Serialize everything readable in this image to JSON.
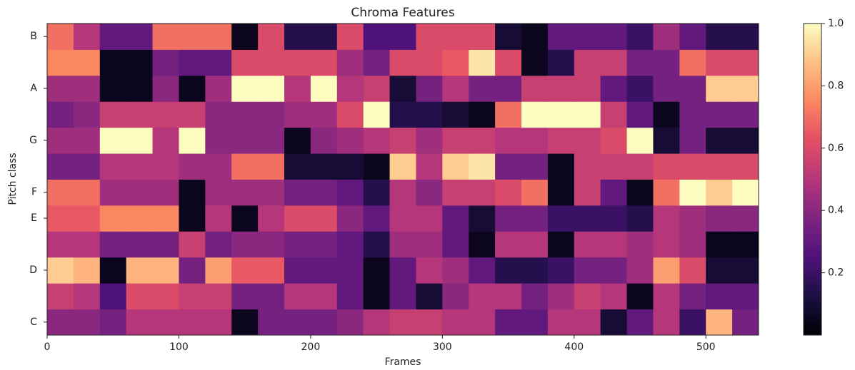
{
  "chart_data": {
    "type": "heatmap",
    "title": "Chroma Features",
    "x_label": "Frames",
    "y_label": "Pitch class",
    "colormap": "magma",
    "categories": [
      "C",
      null,
      "D",
      null,
      "E",
      "F",
      null,
      "G",
      null,
      "A",
      null,
      "B"
    ],
    "bins": [
      0,
      20,
      40,
      60,
      80,
      100,
      120,
      140,
      160,
      180,
      200,
      220,
      240,
      260,
      280,
      300,
      320,
      340,
      360,
      380,
      400,
      420,
      440,
      460,
      480,
      500,
      520,
      540
    ],
    "xlim": [
      0,
      540
    ],
    "xticks": [
      0,
      100,
      200,
      300,
      400,
      500
    ],
    "clim": [
      0,
      1
    ],
    "cticks": [
      0.2,
      0.4,
      0.6,
      0.8,
      {
        "value": 1,
        "label": "1.0"
      }
    ],
    "values": [
      [
        0.4,
        0.4,
        0.35,
        0.5,
        0.5,
        0.5,
        0.5,
        0.05,
        0.35,
        0.35,
        0.35,
        0.4,
        0.5,
        0.55,
        0.55,
        0.5,
        0.5,
        0.3,
        0.3,
        0.5,
        0.5,
        0.1,
        0.3,
        0.5,
        0.2,
        0.85,
        0.35
      ],
      [
        0.55,
        0.5,
        0.25,
        0.6,
        0.6,
        0.55,
        0.55,
        0.35,
        0.35,
        0.5,
        0.5,
        0.3,
        0.05,
        0.3,
        0.1,
        0.4,
        0.5,
        0.5,
        0.35,
        0.45,
        0.55,
        0.5,
        0.05,
        0.5,
        0.35,
        0.3,
        0.3
      ],
      [
        0.9,
        0.85,
        0.05,
        0.85,
        0.85,
        0.35,
        0.8,
        0.65,
        0.65,
        0.3,
        0.3,
        0.3,
        0.05,
        0.3,
        0.5,
        0.45,
        0.3,
        0.15,
        0.15,
        0.2,
        0.35,
        0.35,
        0.45,
        0.8,
        0.6,
        0.1,
        0.1
      ],
      [
        0.5,
        0.5,
        0.35,
        0.35,
        0.35,
        0.55,
        0.35,
        0.4,
        0.4,
        0.35,
        0.35,
        0.3,
        0.15,
        0.45,
        0.45,
        0.3,
        0.05,
        0.5,
        0.5,
        0.05,
        0.5,
        0.5,
        0.45,
        0.5,
        0.45,
        0.05,
        0.05
      ],
      [
        0.65,
        0.65,
        0.75,
        0.75,
        0.75,
        0.05,
        0.5,
        0.05,
        0.5,
        0.6,
        0.6,
        0.4,
        0.3,
        0.5,
        0.5,
        0.3,
        0.1,
        0.35,
        0.35,
        0.2,
        0.2,
        0.2,
        0.15,
        0.5,
        0.45,
        0.4,
        0.4
      ],
      [
        0.7,
        0.7,
        0.45,
        0.45,
        0.45,
        0.05,
        0.45,
        0.45,
        0.45,
        0.35,
        0.35,
        0.3,
        0.15,
        0.5,
        0.4,
        0.55,
        0.55,
        0.6,
        0.7,
        0.05,
        0.55,
        0.3,
        0.05,
        0.7,
        1.0,
        0.9,
        1.0
      ],
      [
        0.35,
        0.35,
        0.5,
        0.5,
        0.5,
        0.45,
        0.45,
        0.7,
        0.7,
        0.1,
        0.1,
        0.1,
        0.05,
        0.9,
        0.5,
        0.9,
        0.95,
        0.35,
        0.35,
        0.05,
        0.55,
        0.55,
        0.55,
        0.6,
        0.6,
        0.6,
        0.6
      ],
      [
        0.45,
        0.45,
        1.0,
        1.0,
        0.5,
        1.0,
        0.4,
        0.4,
        0.4,
        0.05,
        0.4,
        0.45,
        0.5,
        0.55,
        0.45,
        0.55,
        0.55,
        0.5,
        0.5,
        0.55,
        0.55,
        0.6,
        1.0,
        0.1,
        0.35,
        0.1,
        0.1
      ],
      [
        0.35,
        0.4,
        0.55,
        0.55,
        0.55,
        0.55,
        0.4,
        0.4,
        0.4,
        0.45,
        0.45,
        0.6,
        1.0,
        0.15,
        0.15,
        0.1,
        0.05,
        0.7,
        1.0,
        1.0,
        1.0,
        0.55,
        0.3,
        0.05,
        0.35,
        0.35,
        0.35
      ],
      [
        0.45,
        0.45,
        0.05,
        0.05,
        0.4,
        0.05,
        0.45,
        1.0,
        1.0,
        0.5,
        1.0,
        0.5,
        0.55,
        0.1,
        0.35,
        0.5,
        0.35,
        0.35,
        0.55,
        0.55,
        0.55,
        0.3,
        0.2,
        0.35,
        0.35,
        0.9,
        0.9
      ],
      [
        0.75,
        0.75,
        0.05,
        0.05,
        0.35,
        0.3,
        0.3,
        0.6,
        0.6,
        0.6,
        0.6,
        0.45,
        0.35,
        0.6,
        0.6,
        0.65,
        0.95,
        0.6,
        0.05,
        0.15,
        0.55,
        0.55,
        0.35,
        0.35,
        0.7,
        0.6,
        0.6
      ],
      [
        0.7,
        0.5,
        0.3,
        0.3,
        0.7,
        0.7,
        0.7,
        0.05,
        0.6,
        0.15,
        0.15,
        0.6,
        0.25,
        0.25,
        0.6,
        0.6,
        0.6,
        0.1,
        0.05,
        0.3,
        0.3,
        0.3,
        0.2,
        0.45,
        0.3,
        0.15,
        0.15
      ]
    ]
  }
}
